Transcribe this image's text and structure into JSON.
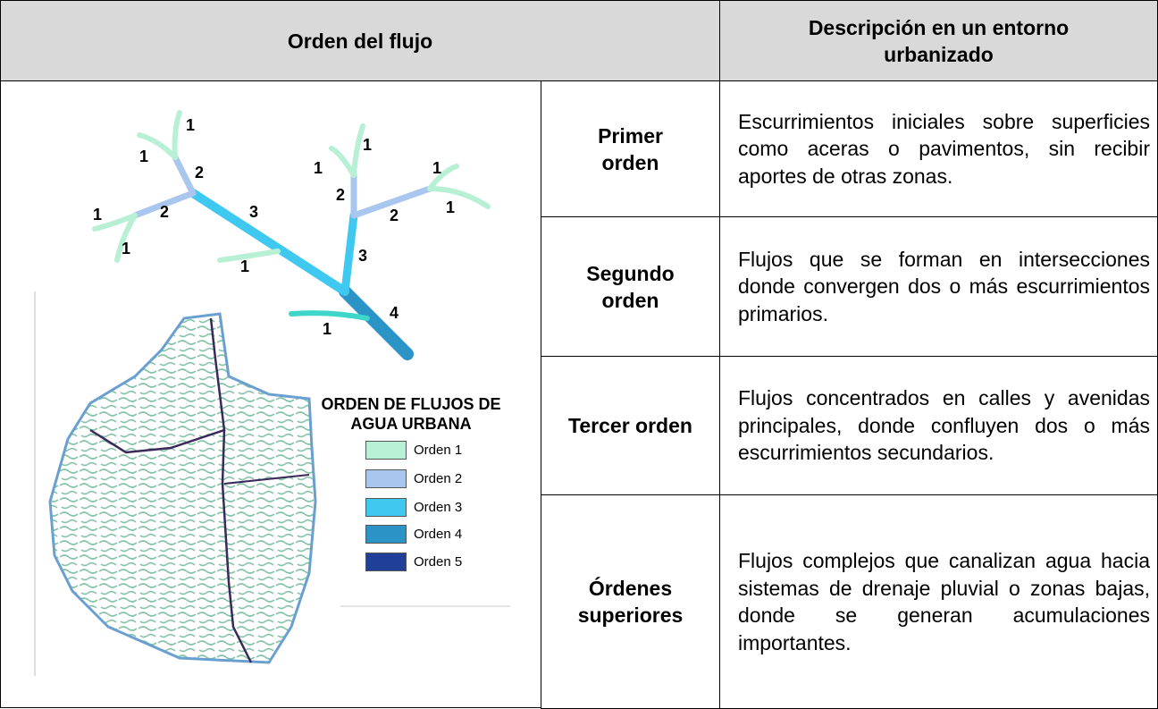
{
  "table": {
    "header": [
      "Orden del flujo",
      "Descripción en un entorno urbanizado"
    ],
    "rows": [
      {
        "order": "Primer orden",
        "description": "Escurrimientos iniciales sobre superficies como aceras o pavimentos, sin recibir aportes de otras zonas."
      },
      {
        "order": "Segundo orden",
        "description": "Flujos que se forman en intersecciones donde convergen dos o más escurrimientos primarios."
      },
      {
        "order": "Tercer orden",
        "description": "Flujos concentrados en calles y avenidas principales, donde confluyen dos o más escurrimientos secundarios."
      },
      {
        "order": "Órdenes superiores",
        "description": "Flujos complejos que canalizan agua hacia sistemas de drenaje pluvial o zonas bajas, donde se generan acumulaciones importantes."
      }
    ]
  },
  "image": {
    "tree_labels": [
      "1",
      "1",
      "2",
      "1",
      "1",
      "1",
      "2",
      "2",
      "3",
      "2",
      "1",
      "1",
      "1",
      "3",
      "1",
      "4",
      "1"
    ],
    "legend": {
      "title": "ORDEN DE FLUJOS DE AGUA URBANA",
      "items": [
        {
          "label": "Orden 1",
          "color": "#b8f0d6"
        },
        {
          "label": "Orden 2",
          "color": "#a8c6ee"
        },
        {
          "label": "Orden 3",
          "color": "#3fc8f0"
        },
        {
          "label": "Orden 4",
          "color": "#2b93c6"
        },
        {
          "label": "Orden 5",
          "color": "#1f3f98"
        }
      ]
    }
  }
}
